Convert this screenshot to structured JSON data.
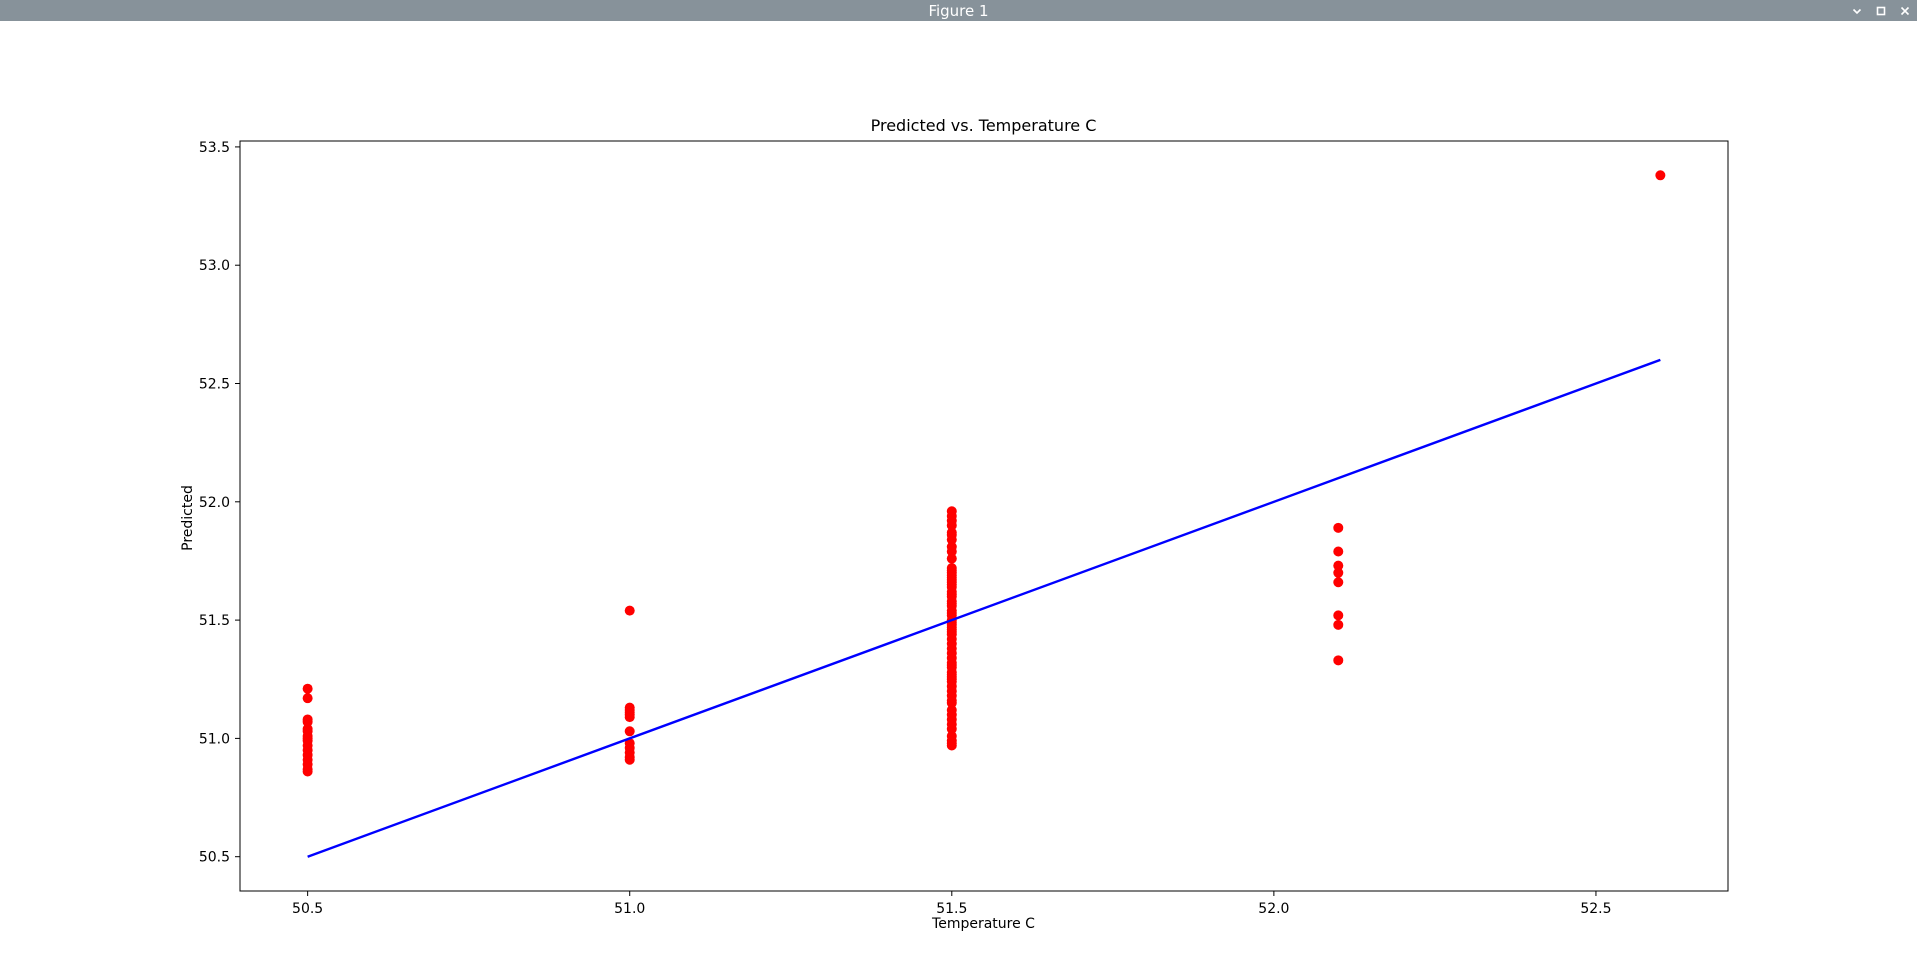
{
  "window": {
    "title": "Figure 1",
    "controls": [
      "chevron-down-icon",
      "maximize-icon",
      "close-icon"
    ]
  },
  "colors": {
    "titlebar": "#87929a",
    "points": "#ff0000",
    "line": "#0000ff"
  },
  "chart_data": {
    "type": "scatter",
    "title": "Predicted vs. Temperature C",
    "xlabel": "Temperature C",
    "ylabel": "Predicted",
    "xlim": [
      50.395,
      52.705
    ],
    "ylim": [
      50.355,
      53.525
    ],
    "xticks": [
      "50.5",
      "51.0",
      "51.5",
      "52.0",
      "52.5"
    ],
    "yticks": [
      "50.5",
      "51.0",
      "51.5",
      "52.0",
      "52.5",
      "53.0",
      "53.5"
    ],
    "grid": false,
    "series": [
      {
        "kind": "points",
        "x": [
          50.5,
          50.5,
          50.5,
          50.5,
          50.5,
          50.5,
          50.5,
          50.5,
          50.5,
          50.5,
          50.5,
          50.5,
          50.5,
          50.5,
          50.5,
          50.5,
          51.0,
          51.0,
          51.0,
          51.0,
          51.0,
          51.0,
          51.0,
          51.0,
          51.0,
          51.0,
          51.0,
          51.0,
          51.5,
          51.5,
          51.5,
          51.5,
          51.5,
          51.5,
          51.5,
          51.5,
          51.5,
          51.5,
          51.5,
          51.5,
          51.5,
          51.5,
          51.5,
          51.5,
          51.5,
          51.5,
          51.5,
          51.5,
          51.5,
          51.5,
          51.5,
          51.5,
          51.5,
          51.5,
          51.5,
          51.5,
          51.5,
          51.5,
          51.5,
          51.5,
          51.5,
          51.5,
          51.5,
          51.5,
          51.5,
          51.5,
          51.5,
          51.5,
          51.5,
          51.5,
          51.5,
          51.5,
          51.5,
          51.5,
          51.5,
          51.5,
          51.5,
          51.5,
          51.5,
          51.5,
          51.5,
          51.5,
          51.5,
          51.5,
          51.5,
          51.5,
          51.5,
          51.5,
          51.5,
          51.5,
          52.1,
          52.1,
          52.1,
          52.1,
          52.1,
          52.1,
          52.1,
          52.1,
          52.6
        ],
        "y": [
          51.21,
          51.17,
          51.08,
          51.07,
          51.04,
          51.03,
          51.01,
          51.0,
          50.99,
          50.97,
          50.95,
          50.93,
          50.91,
          50.89,
          50.87,
          50.86,
          51.54,
          51.13,
          51.12,
          51.11,
          51.1,
          51.09,
          51.03,
          50.98,
          50.96,
          50.94,
          50.92,
          50.91,
          51.96,
          51.94,
          51.92,
          51.9,
          51.87,
          51.86,
          51.84,
          51.81,
          51.79,
          51.76,
          51.72,
          51.7,
          51.68,
          51.66,
          51.64,
          51.62,
          51.6,
          51.58,
          51.56,
          51.54,
          51.52,
          51.5,
          51.48,
          51.46,
          51.44,
          51.42,
          51.4,
          51.38,
          51.36,
          51.34,
          51.32,
          51.3,
          51.28,
          51.26,
          51.24,
          51.22,
          51.2,
          51.18,
          51.16,
          51.15,
          51.12,
          51.1,
          51.08,
          51.06,
          51.04,
          51.01,
          50.99,
          50.98,
          50.97,
          51.45,
          51.47,
          51.49,
          51.53,
          51.57,
          51.61,
          51.65,
          51.67,
          51.69,
          51.71,
          51.25,
          51.27,
          51.31,
          51.89,
          51.79,
          51.73,
          51.7,
          51.66,
          51.52,
          51.48,
          51.33,
          53.38
        ]
      },
      {
        "kind": "line",
        "x": [
          50.5,
          52.6
        ],
        "y": [
          50.5,
          52.6
        ]
      }
    ]
  }
}
